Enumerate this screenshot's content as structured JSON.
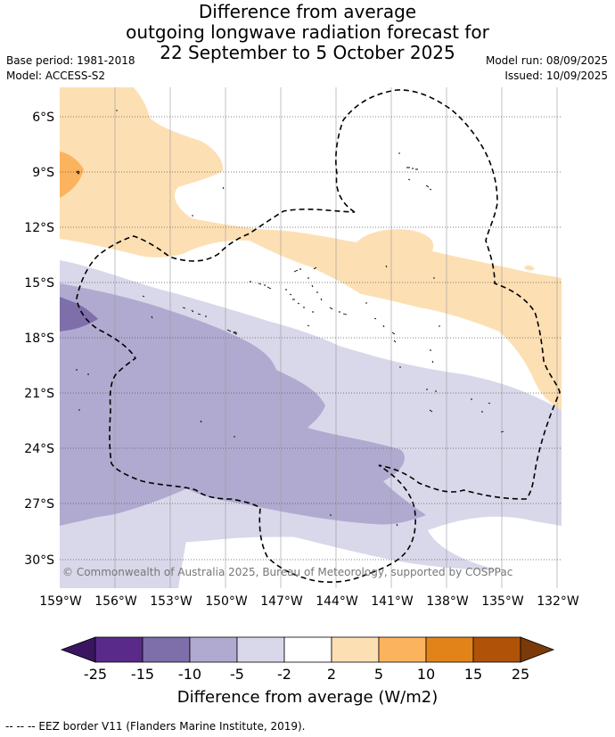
{
  "header": {
    "title_line1": "Difference from average",
    "title_line2": "outgoing longwave radiation forecast for",
    "title_line3": "22 September to 5 October 2025",
    "base_period": "Base period: 1981-2018",
    "model": "Model: ACCESS-S2",
    "model_run": "Model run: 08/09/2025",
    "issued": "Issued: 10/09/2025"
  },
  "map": {
    "lat_labels": [
      "6°S",
      "9°S",
      "12°S",
      "15°S",
      "18°S",
      "21°S",
      "24°S",
      "27°S",
      "30°S"
    ],
    "lon_labels": [
      "159°W",
      "156°W",
      "153°W",
      "150°W",
      "147°W",
      "144°W",
      "141°W",
      "138°W",
      "135°W",
      "132°W"
    ],
    "copyright": "© Commonwealth of Australia 2025, Bureau of Meteorology, supported by COSPPac"
  },
  "colorbar": {
    "ticks": [
      "-25",
      "-15",
      "-10",
      "-5",
      "-2",
      "2",
      "5",
      "10",
      "15",
      "25"
    ],
    "colors": [
      "#5a2a8a",
      "#7e6eaa",
      "#b0aad0",
      "#d8d8ea",
      "#ffffff",
      "#fddfb4",
      "#fcb35e",
      "#e28319",
      "#b05208"
    ],
    "under_color": "#3a1560",
    "over_color": "#7a3a0a",
    "title": "Difference from average (W/m2)"
  },
  "footer": {
    "legend": "--  --  -- EEZ border V11 (Flanders Marine Institute, 2019)."
  }
}
